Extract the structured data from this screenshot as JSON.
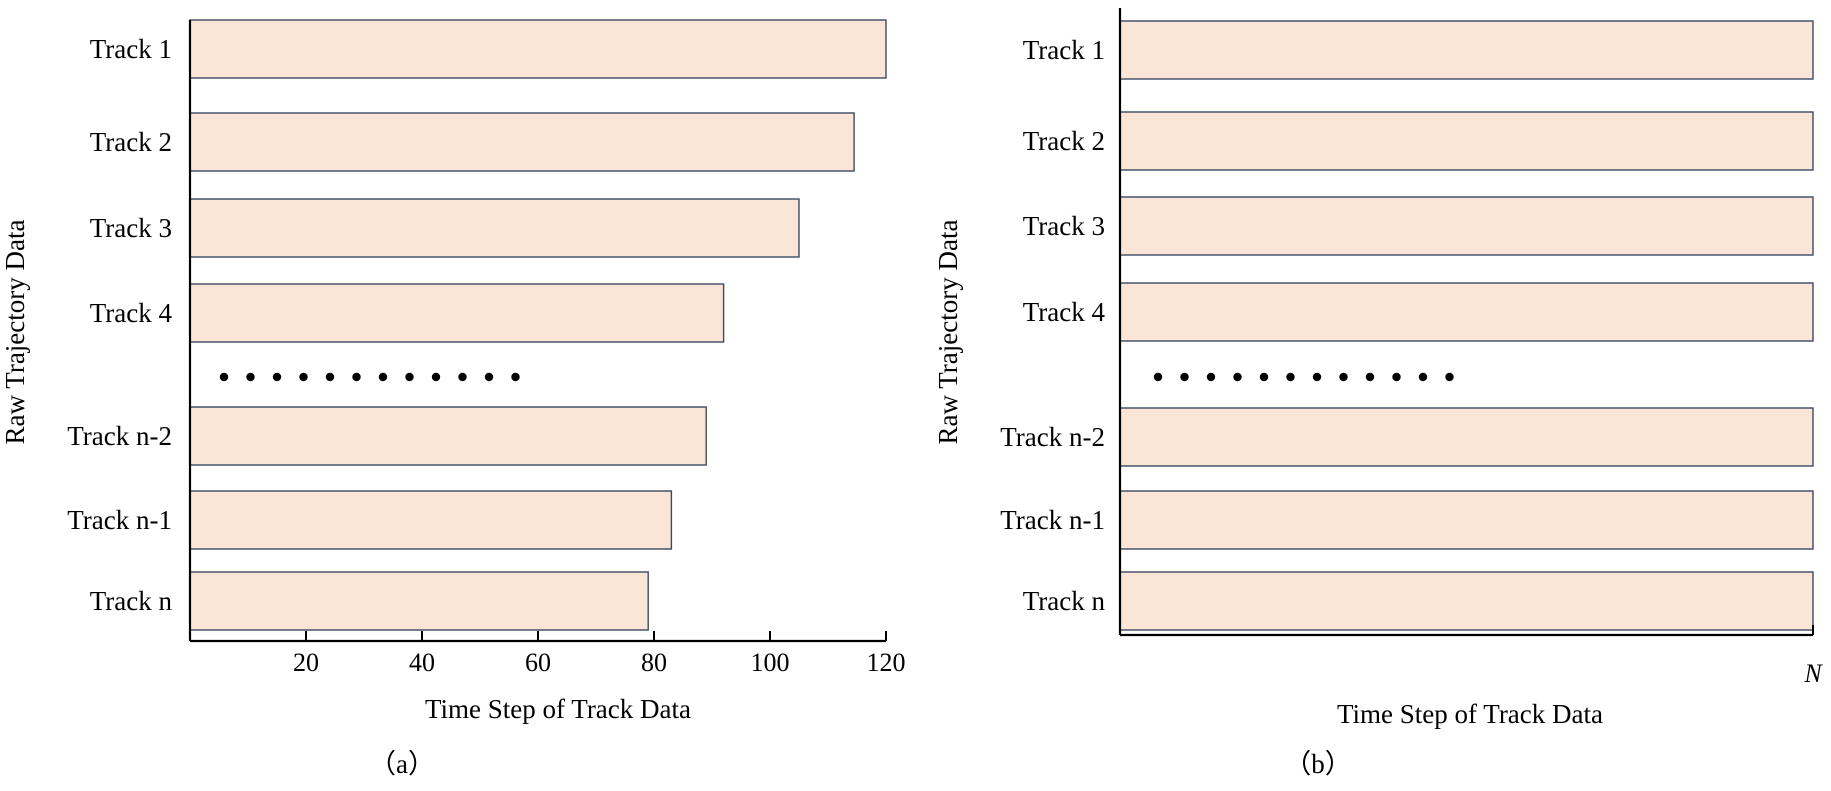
{
  "colors": {
    "bar_fill": "#fbe5d6",
    "bar_stroke": "#3a4a64",
    "axis": "#000000"
  },
  "chart_data": [
    {
      "type": "bar",
      "orientation": "horizontal",
      "panel_label": "（a）",
      "xlabel": "Time Step of Track Data",
      "ylabel": "Raw Trajectory Data",
      "xlim": [
        0,
        120
      ],
      "xticks": [
        20,
        40,
        60,
        80,
        100,
        120
      ],
      "ellipsis_dots": 12,
      "categories": [
        "Track 1",
        "Track 2",
        "Track 3",
        "Track 4",
        "Track n-2",
        "Track n-1",
        "Track n"
      ],
      "values": [
        120,
        114.5,
        105,
        92,
        89,
        83,
        79
      ],
      "grid": false,
      "legend": "none"
    },
    {
      "type": "bar",
      "orientation": "horizontal",
      "panel_label": "（b）",
      "xlabel": "Time Step of Track Data",
      "ylabel": "Raw Trajectory Data",
      "xlim": [
        0,
        "N"
      ],
      "xticks": [
        "N"
      ],
      "ellipsis_dots": 12,
      "categories": [
        "Track 1",
        "Track 2",
        "Track 3",
        "Track 4",
        "Track n-2",
        "Track n-1",
        "Track n"
      ],
      "values": [
        "N",
        "N",
        "N",
        "N",
        "N",
        "N",
        "N"
      ],
      "grid": false,
      "legend": "none"
    }
  ]
}
